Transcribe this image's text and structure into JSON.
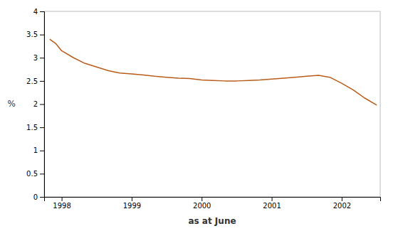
{
  "chart_data": {
    "type": "line",
    "title": "",
    "xlabel": "as at June",
    "ylabel": "%",
    "color": "#b85c1a",
    "x": [
      1997.83,
      1997.92,
      1998.0,
      1998.17,
      1998.33,
      1998.5,
      1998.67,
      1998.83,
      1999.0,
      1999.17,
      1999.33,
      1999.5,
      1999.67,
      1999.83,
      2000.0,
      2000.17,
      2000.33,
      2000.5,
      2000.67,
      2000.83,
      2001.0,
      2001.17,
      2001.33,
      2001.5,
      2001.67,
      2001.83,
      2002.0,
      2002.17,
      2002.33,
      2002.5
    ],
    "values": [
      3.4,
      3.3,
      3.15,
      3.0,
      2.88,
      2.8,
      2.72,
      2.67,
      2.65,
      2.63,
      2.6,
      2.58,
      2.56,
      2.55,
      2.52,
      2.51,
      2.5,
      2.5,
      2.51,
      2.52,
      2.54,
      2.56,
      2.58,
      2.6,
      2.62,
      2.58,
      2.45,
      2.3,
      2.13,
      1.98
    ],
    "xlim": [
      1997.75,
      2002.55
    ],
    "xticks": [
      1998,
      1999,
      2000,
      2001,
      2002
    ],
    "ylim": [
      0,
      4
    ],
    "yticks": [
      0,
      0.5,
      1,
      1.5,
      2,
      2.5,
      3,
      3.5,
      4
    ],
    "grid": false
  }
}
